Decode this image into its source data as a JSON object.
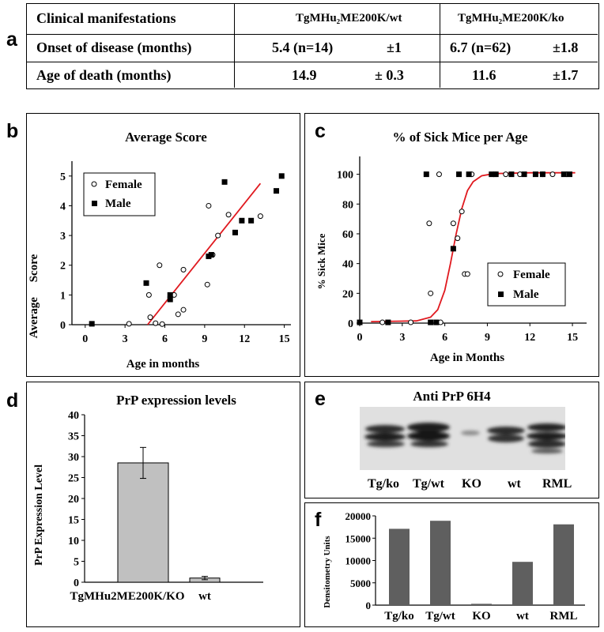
{
  "panel_letters": {
    "a": "a",
    "b": "b",
    "c": "c",
    "d": "d",
    "e": "e",
    "f": "f"
  },
  "table": {
    "header": [
      "Clinical manifestations",
      "TgMHu₂ME200K/wt",
      "TgMHu₂ME200K/ko"
    ],
    "rows": [
      {
        "label": "Onset of disease (months)",
        "wt_value": "5.4 (n=14)",
        "wt_err": "±1",
        "ko_value": "6.7 (n=62)",
        "ko_err": "±1.8"
      },
      {
        "label": "Age of death (months)",
        "wt_value": "14.9",
        "wt_err": "± 0.3",
        "ko_value": "11.6",
        "ko_err": "±1.7"
      }
    ]
  },
  "chart_data": [
    {
      "id": "b",
      "type": "scatter",
      "title": "Average Score",
      "xlabel": "Age in months",
      "ylabel": "Average     Score",
      "xlim": [
        -1,
        15.5
      ],
      "ylim": [
        0,
        5.5
      ],
      "xticks": [
        0,
        3,
        6,
        9,
        12,
        15
      ],
      "yticks": [
        0,
        1,
        2,
        3,
        4,
        5
      ],
      "legend_position": "top-left",
      "series": [
        {
          "name": "Female",
          "marker": "open-circle",
          "points": [
            [
              3.3,
              0.03
            ],
            [
              4.8,
              1.0
            ],
            [
              4.9,
              0.25
            ],
            [
              5.3,
              0.05
            ],
            [
              5.6,
              2.0
            ],
            [
              5.8,
              0.02
            ],
            [
              6.7,
              1.0
            ],
            [
              7.0,
              0.35
            ],
            [
              7.4,
              0.5
            ],
            [
              7.4,
              1.85
            ],
            [
              9.2,
              1.35
            ],
            [
              9.3,
              4.0
            ],
            [
              9.6,
              2.35
            ],
            [
              10.0,
              3.0
            ],
            [
              10.8,
              3.7
            ],
            [
              13.2,
              3.65
            ]
          ]
        },
        {
          "name": "Male",
          "marker": "filled-square",
          "points": [
            [
              0.5,
              0.03
            ],
            [
              4.6,
              1.4
            ],
            [
              6.4,
              1.0
            ],
            [
              6.4,
              0.85
            ],
            [
              9.3,
              2.3
            ],
            [
              9.5,
              2.35
            ],
            [
              10.5,
              4.8
            ],
            [
              11.3,
              3.1
            ],
            [
              11.8,
              3.5
            ],
            [
              12.5,
              3.5
            ],
            [
              14.4,
              4.5
            ],
            [
              14.8,
              5.0
            ]
          ]
        },
        {
          "name": "",
          "marker": "trend-line",
          "color": "#e0191f",
          "points": [
            [
              4.7,
              0.0
            ],
            [
              13.2,
              4.75
            ]
          ]
        }
      ]
    },
    {
      "id": "c",
      "type": "scatter",
      "title": "% of Sick Mice per Age",
      "xlabel": "Age in Months",
      "ylabel": "% Sick Mice",
      "xlim": [
        0,
        16
      ],
      "ylim": [
        0,
        112
      ],
      "xticks": [
        0,
        3,
        6,
        9,
        12,
        15
      ],
      "yticks": [
        0,
        20,
        40,
        60,
        80,
        100
      ],
      "legend_position": "bottom-right",
      "series": [
        {
          "name": "Female",
          "marker": "open-circle",
          "points": [
            [
              1.6,
              0.5
            ],
            [
              3.6,
              0.5
            ],
            [
              4.9,
              67
            ],
            [
              5.0,
              20
            ],
            [
              5.6,
              100
            ],
            [
              5.7,
              0.5
            ],
            [
              6.6,
              67
            ],
            [
              6.9,
              57
            ],
            [
              7.2,
              75
            ],
            [
              7.4,
              33
            ],
            [
              7.6,
              33
            ],
            [
              7.9,
              100
            ],
            [
              9.6,
              100
            ],
            [
              10.3,
              100
            ],
            [
              11.3,
              100
            ],
            [
              12.9,
              100
            ],
            [
              13.6,
              100
            ],
            [
              14.6,
              100
            ]
          ]
        },
        {
          "name": "Male",
          "marker": "filled-square",
          "points": [
            [
              0,
              0.5
            ],
            [
              2.0,
              0.5
            ],
            [
              4.7,
              100
            ],
            [
              5.0,
              0.5
            ],
            [
              5.4,
              0.5
            ],
            [
              6.6,
              50
            ],
            [
              7.0,
              100
            ],
            [
              7.7,
              100
            ],
            [
              9.3,
              100
            ],
            [
              9.6,
              100
            ],
            [
              10.7,
              100
            ],
            [
              11.6,
              100
            ],
            [
              12.4,
              100
            ],
            [
              12.9,
              100
            ],
            [
              14.4,
              100
            ],
            [
              14.8,
              100
            ]
          ]
        },
        {
          "name": "",
          "marker": "fit-curve",
          "color": "#e0191f",
          "points": [
            [
              0.8,
              1
            ],
            [
              4.0,
              1.5
            ],
            [
              5.0,
              4
            ],
            [
              5.5,
              9
            ],
            [
              6.0,
              22
            ],
            [
              6.4,
              40
            ],
            [
              6.8,
              60
            ],
            [
              7.2,
              77
            ],
            [
              7.6,
              89
            ],
            [
              8.0,
              95
            ],
            [
              8.6,
              99
            ],
            [
              9.5,
              100.5
            ],
            [
              12,
              101
            ],
            [
              15.2,
              101
            ]
          ]
        }
      ]
    },
    {
      "id": "d",
      "type": "bar",
      "title": "PrP expression levels",
      "ylabel": "PrP Expression Level",
      "categories": [
        "TgMHu2ME200K/KO",
        "wt"
      ],
      "values": [
        28.5,
        1.0
      ],
      "errors": [
        3.7,
        0.4
      ],
      "ylim": [
        0,
        40
      ],
      "yticks": [
        0,
        5,
        10,
        15,
        20,
        25,
        30,
        35,
        40
      ],
      "bar_color": "#c0c0c0"
    },
    {
      "id": "f",
      "type": "bar",
      "ylabel": "Densitometry Units",
      "categories": [
        "Tg/ko",
        "Tg/wt",
        "KO",
        "wt",
        "RML"
      ],
      "values": [
        17100,
        18900,
        300,
        9700,
        18100
      ],
      "ylim": [
        0,
        20000
      ],
      "yticks": [
        0,
        5000,
        10000,
        15000,
        20000
      ],
      "bar_color": "#5f5f5f"
    }
  ],
  "blot": {
    "title": "Anti PrP 6H4",
    "lanes": [
      "Tg/ko",
      "Tg/wt",
      "KO",
      "wt",
      "RML"
    ]
  }
}
